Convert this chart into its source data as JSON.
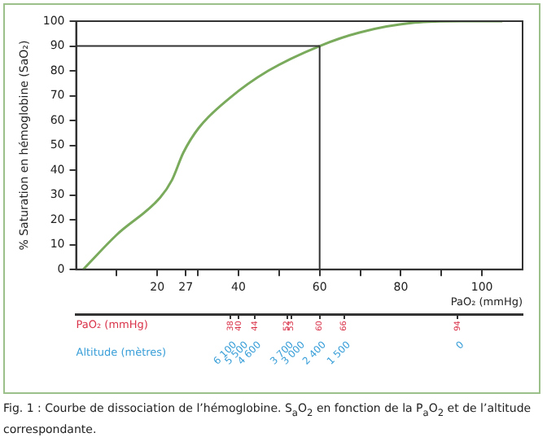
{
  "chart_data": {
    "type": "line",
    "title": "Fig. 1 : Courbe de dissociation de l’hémoglobine. S$_{a}$O$_{2}$ en fonction de la P$_{a}$O$_{2}$ et de l’altitude correspondante.",
    "x": [
      1.7,
      10,
      20.7,
      23.6,
      26.4,
      30.2,
      37.8,
      47.3,
      60,
      70,
      83.4,
      95,
      105
    ],
    "series": [
      {
        "color": "#7aaa5c",
        "values": [
          0,
          14,
          29,
          36,
          47,
          57,
          69,
          80,
          90,
          95.5,
          99.4,
          100,
          100
        ]
      }
    ],
    "xlim": [
      0,
      110
    ],
    "xticks": [
      {
        "value": 10,
        "label": null
      },
      20,
      27,
      {
        "value": 30,
        "label": null
      },
      40,
      {
        "value": 50,
        "label": null
      },
      60,
      {
        "value": 70,
        "label": null
      },
      80,
      {
        "value": 90,
        "label": null
      },
      100
    ],
    "ylim": [
      0,
      100
    ],
    "yticks": [
      0,
      10,
      20,
      30,
      40,
      50,
      60,
      70,
      80,
      90,
      100
    ],
    "xlabel": "PaO₂ (mmHg)",
    "ylabel": "% Saturation en hémoglobine (SaO₂)",
    "x2lim": [
      0,
      110
    ],
    "x2ticks": [
      38,
      40,
      44,
      52,
      53,
      60,
      66,
      94
    ],
    "x2label": "PaO₂ (mmHg)",
    "ref_lines": [
      {
        "axis": "y",
        "value": 90,
        "color": "#333333"
      },
      {
        "axis": "x",
        "value": 60,
        "color": "#333333"
      }
    ],
    "grid": false,
    "legend": false,
    "marker": "none",
    "line_style": "solid",
    "annotations": [
      "Altitude (mètres)",
      "6 100",
      "5 500",
      "4 600",
      "3 700",
      "3 000",
      "2 400",
      "1 500",
      "0"
    ]
  }
}
